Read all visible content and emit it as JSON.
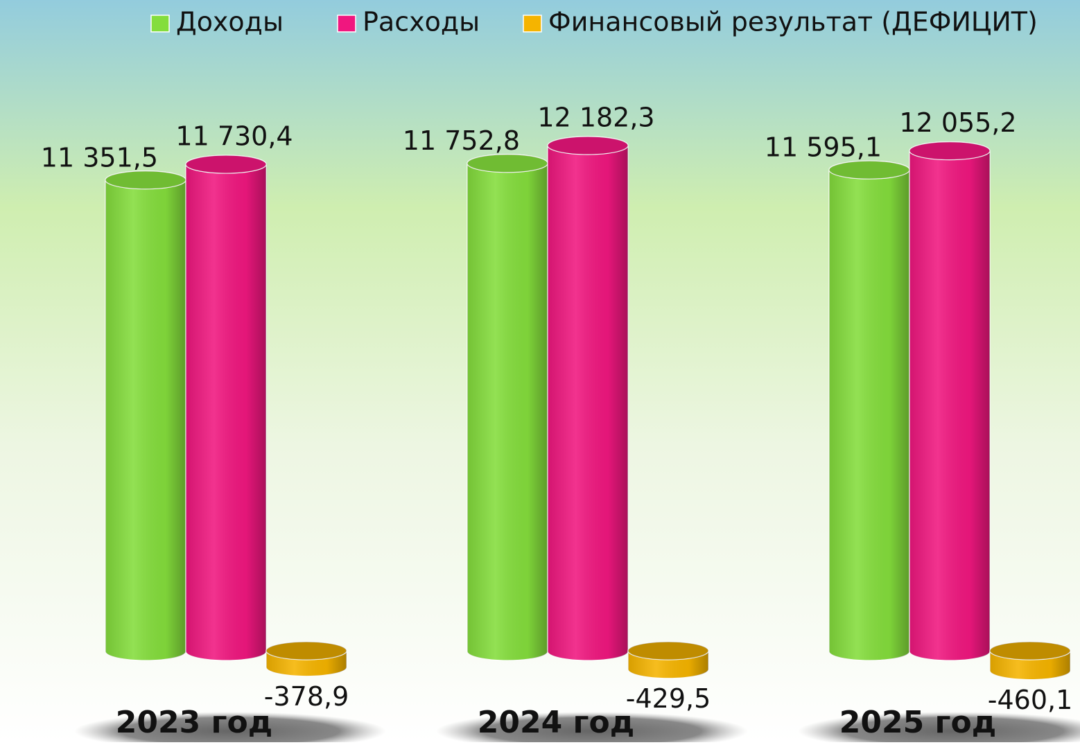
{
  "chart_data": {
    "type": "bar",
    "categories": [
      "2023 год",
      "2024 год",
      "2025 год"
    ],
    "series": [
      {
        "name": "Доходы",
        "color": "#84dd3c",
        "values": [
          11351.5,
          11752.8,
          11595.1
        ],
        "value_labels": [
          "11 351,5",
          "11 752,8",
          "11 595,1"
        ]
      },
      {
        "name": "Расходы",
        "color": "#f0177f",
        "values": [
          11730.4,
          12182.3,
          12055.2
        ],
        "value_labels": [
          "11 730,4",
          "12 182,3",
          "12 055,2"
        ]
      },
      {
        "name": "Финансовый результат (ДЕФИЦИТ)",
        "color": "#f5b400",
        "values": [
          -378.9,
          -429.5,
          -460.1
        ],
        "value_labels": [
          "-378,9",
          "-429,5",
          "-460,1"
        ]
      }
    ]
  }
}
